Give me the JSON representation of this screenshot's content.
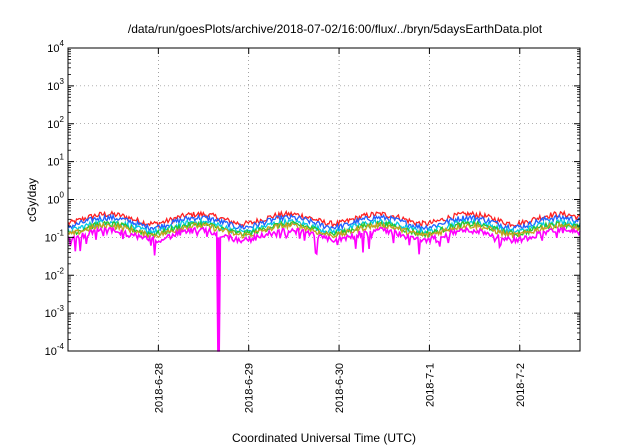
{
  "chart_data": {
    "type": "line",
    "title": "/data/run/goesPlots/archive/2018-07-02/16:00/flux/../bryn/5daysEarthData.plot",
    "xlabel": "Coordinated Universal Time (UTC)",
    "ylabel": "cGy/day",
    "yscale": "log",
    "ylim": [
      0.0001,
      10000
    ],
    "yticks": [
      {
        "base": "10",
        "exp": "-4"
      },
      {
        "base": "10",
        "exp": "-3"
      },
      {
        "base": "10",
        "exp": "-2"
      },
      {
        "base": "10",
        "exp": "-1"
      },
      {
        "base": "10",
        "exp": "0"
      },
      {
        "base": "10",
        "exp": "1"
      },
      {
        "base": "10",
        "exp": "2"
      },
      {
        "base": "10",
        "exp": "3"
      },
      {
        "base": "10",
        "exp": "4"
      }
    ],
    "xlim": [
      "2018-06-27T00:00",
      "2018-07-02T16:00"
    ],
    "xticks": [
      {
        "label": "2018-6-28",
        "date": "2018-06-28T00:00"
      },
      {
        "label": "2018-6-29",
        "date": "2018-06-29T00:00"
      },
      {
        "label": "2018-6-30",
        "date": "2018-06-30T00:00"
      },
      {
        "label": "2018-7-1",
        "date": "2018-07-01T00:00"
      },
      {
        "label": "2018-7-2",
        "date": "2018-07-02T00:00"
      }
    ],
    "grid": true,
    "series": [
      {
        "color": "#ff2020",
        "baseline": 0.32
      },
      {
        "color": "#2060ff",
        "baseline": 0.26
      },
      {
        "color": "#00c8e6",
        "baseline": 0.2
      },
      {
        "color": "#28c828",
        "baseline": 0.175
      },
      {
        "color": "#c8a020",
        "baseline": 0.16
      },
      {
        "color": "#ff00ff",
        "baseline": 0.12
      }
    ],
    "dropout": {
      "date": "2018-06-28T16:00",
      "min_value": 0.0001,
      "color": "#ff00ff"
    }
  }
}
